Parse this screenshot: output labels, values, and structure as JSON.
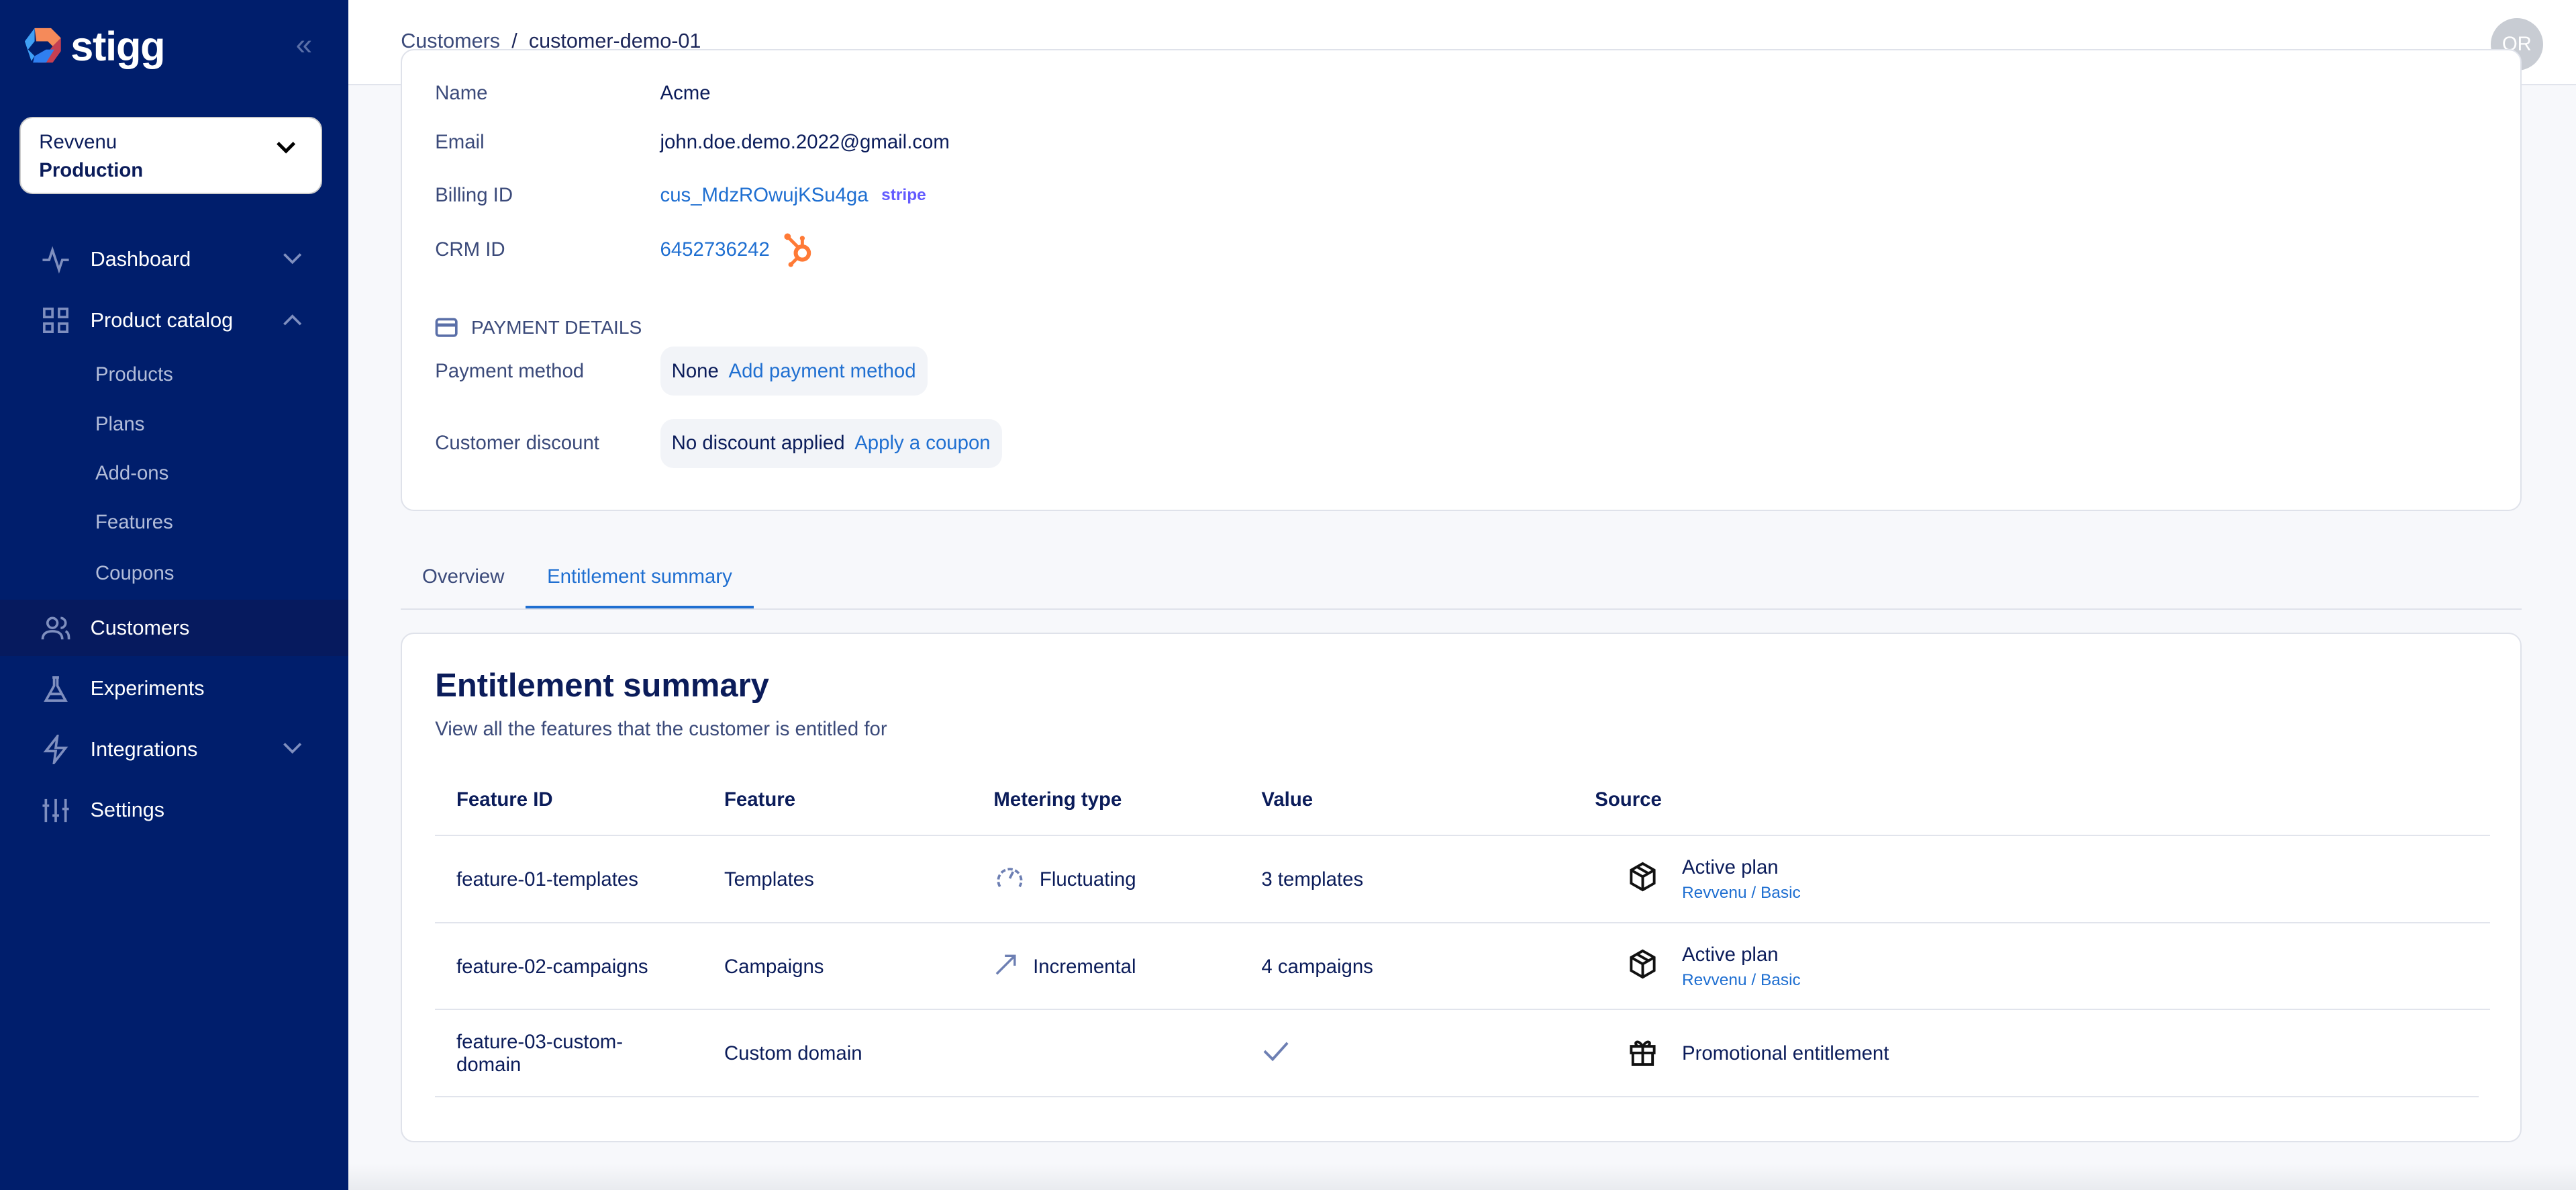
{
  "brand": {
    "name": "stigg"
  },
  "environment": {
    "account": "Revvenu",
    "env": "Production"
  },
  "sidebar": {
    "items": [
      {
        "label": "Dashboard",
        "icon": "activity-icon",
        "chevron": "down"
      },
      {
        "label": "Product catalog",
        "icon": "grid-icon",
        "chevron": "up"
      },
      {
        "label": "Products",
        "sub": true
      },
      {
        "label": "Plans",
        "sub": true
      },
      {
        "label": "Add-ons",
        "sub": true
      },
      {
        "label": "Features",
        "sub": true
      },
      {
        "label": "Coupons",
        "sub": true
      },
      {
        "label": "Customers",
        "icon": "users-icon",
        "active": true
      },
      {
        "label": "Experiments",
        "icon": "flask-icon"
      },
      {
        "label": "Integrations",
        "icon": "bolt-icon",
        "chevron": "down"
      },
      {
        "label": "Settings",
        "icon": "sliders-icon"
      }
    ]
  },
  "header": {
    "breadcrumb": [
      "Customers",
      "customer-demo-01"
    ],
    "avatar": "OR"
  },
  "details": {
    "name_label": "Name",
    "name": "Acme",
    "email_label": "Email",
    "email": "john.doe.demo.2022@gmail.com",
    "billing_label": "Billing ID",
    "billing_id": "cus_MdzROwujKSu4ga",
    "billing_provider": "stripe",
    "crm_label": "CRM ID",
    "crm_id": "6452736242",
    "payment_heading": "PAYMENT DETAILS",
    "payment_method_label": "Payment method",
    "payment_method": "None",
    "add_payment": "Add payment method",
    "discount_label": "Customer discount",
    "discount": "No discount applied",
    "apply_coupon": "Apply a coupon"
  },
  "tabs": [
    {
      "label": "Overview"
    },
    {
      "label": "Entitlement summary",
      "active": true
    }
  ],
  "entitlements": {
    "title": "Entitlement summary",
    "subtitle": "View all the features that the customer is entitled for",
    "columns": [
      "Feature ID",
      "Feature",
      "Metering type",
      "Value",
      "Source"
    ],
    "rows": [
      {
        "id": "feature-01-templates",
        "feature": "Templates",
        "metering": "Fluctuating",
        "metering_icon": "gauge-icon",
        "value": "3 templates",
        "source": "Active plan",
        "source_sub": "Revvenu / Basic",
        "source_icon": "box-icon"
      },
      {
        "id": "feature-02-campaigns",
        "feature": "Campaigns",
        "metering": "Incremental",
        "metering_icon": "arrow-up-right-icon",
        "value": "4 campaigns",
        "source": "Active plan",
        "source_sub": "Revvenu / Basic",
        "source_icon": "box-icon"
      },
      {
        "id": "feature-03-custom-domain",
        "feature": "Custom domain",
        "metering": "",
        "value": "",
        "value_icon": "check-icon",
        "source": "Promotional entitlement",
        "source_icon": "gift-icon"
      }
    ]
  },
  "colors": {
    "sidebar": "#001e6c",
    "accent": "#1f6fd1",
    "text": "#0b1c5a",
    "hubspot": "#ff7a36",
    "stripe": "#635bff"
  }
}
